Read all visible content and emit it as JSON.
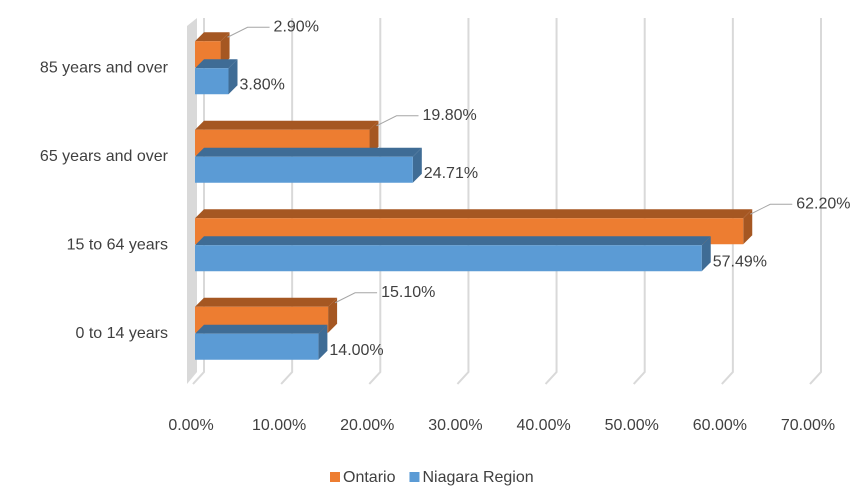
{
  "chart_data": {
    "type": "bar",
    "orientation": "horizontal",
    "categories": [
      "85 years and over",
      "65 years and over",
      "15 to 64 years",
      "0 to 14 years"
    ],
    "series": [
      {
        "name": "Ontario",
        "color": "#ed7d31",
        "values": [
          2.9,
          19.8,
          62.2,
          15.1
        ],
        "value_labels": [
          "2.90%",
          "19.80%",
          "62.20%",
          "15.10%"
        ]
      },
      {
        "name": "Niagara Region",
        "color": "#5b9bd5",
        "values": [
          3.8,
          24.71,
          57.49,
          14.0
        ],
        "value_labels": [
          "3.80%",
          "24.71%",
          "57.49%",
          "14.00%"
        ]
      }
    ],
    "xlim": [
      0,
      70
    ],
    "xticks": [
      {
        "value": 0,
        "label": "0.00%"
      },
      {
        "value": 10,
        "label": "10.00%"
      },
      {
        "value": 20,
        "label": "20.00%"
      },
      {
        "value": 30,
        "label": "30.00%"
      },
      {
        "value": 40,
        "label": "40.00%"
      },
      {
        "value": 50,
        "label": "50.00%"
      },
      {
        "value": 60,
        "label": "60.00%"
      },
      {
        "value": 70,
        "label": "70.00%"
      }
    ],
    "grid": true,
    "legend": "bottom"
  }
}
